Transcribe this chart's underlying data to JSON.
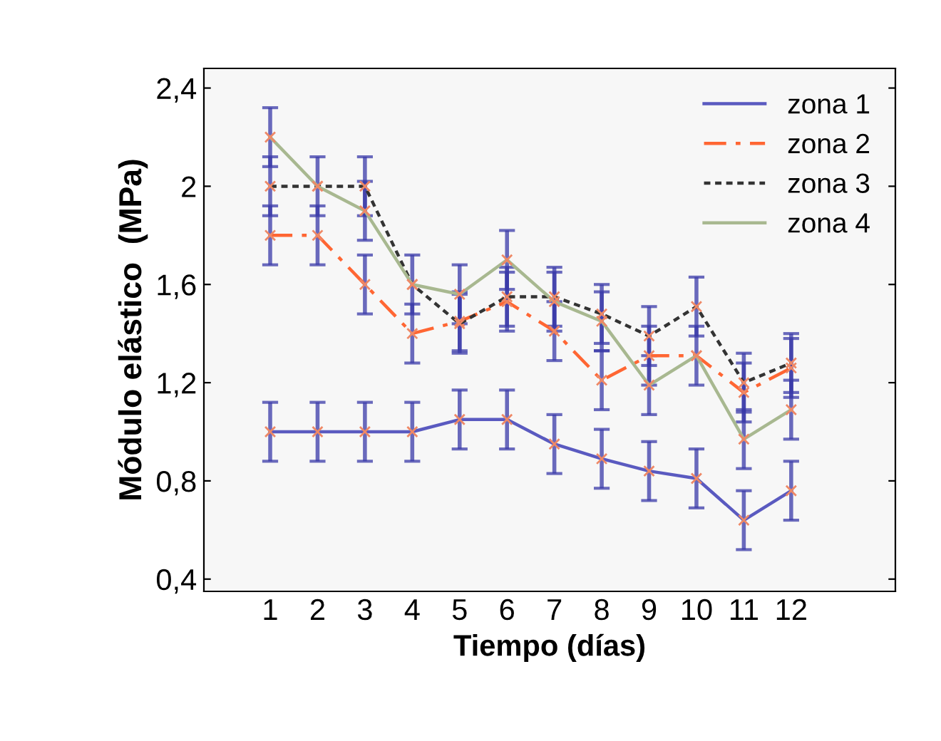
{
  "chart_data": {
    "type": "line",
    "xlabel": "Tiempo (días)",
    "ylabel": "Módulo elástico  (MPa)",
    "x": [
      1,
      2,
      3,
      4,
      5,
      6,
      7,
      8,
      9,
      10,
      11,
      12
    ],
    "xlim": [
      -0.4,
      14.2
    ],
    "xticks": [
      1,
      2,
      3,
      4,
      5,
      6,
      7,
      8,
      9,
      10,
      11,
      12
    ],
    "ylim": [
      0.35,
      2.48
    ],
    "yticks": [
      {
        "value": 0.4,
        "label": "0,4"
      },
      {
        "value": 0.8,
        "label": "0,8"
      },
      {
        "value": 1.2,
        "label": "1,2"
      },
      {
        "value": 1.6,
        "label": "1,6"
      },
      {
        "value": 2.0,
        "label": "2"
      },
      {
        "value": 2.4,
        "label": "2,4"
      }
    ],
    "marker": "cross",
    "legend": "top right",
    "grid": false,
    "series": [
      {
        "name": "zona 1",
        "color": "#5a5ac0",
        "line_style": "solid",
        "values": [
          1.0,
          1.0,
          1.0,
          1.0,
          1.05,
          1.05,
          0.95,
          0.89,
          0.84,
          0.81,
          0.64,
          0.76
        ],
        "errors": [
          0.12,
          0.12,
          0.12,
          0.12,
          0.12,
          0.12,
          0.12,
          0.12,
          0.12,
          0.12,
          0.12,
          0.12
        ]
      },
      {
        "name": "zona 2",
        "color": "#ff6633",
        "line_style": "dashed",
        "values": [
          1.8,
          1.8,
          1.6,
          1.4,
          1.45,
          1.53,
          1.41,
          1.21,
          1.31,
          1.31,
          1.16,
          1.26
        ],
        "errors": [
          0.12,
          0.12,
          0.12,
          0.12,
          0.12,
          0.12,
          0.12,
          0.12,
          0.12,
          0.12,
          0.12,
          0.12
        ]
      },
      {
        "name": "zona 3",
        "color": "#333333",
        "line_style": "dotted",
        "values": [
          2.0,
          2.0,
          2.0,
          1.6,
          1.44,
          1.55,
          1.55,
          1.48,
          1.39,
          1.51,
          1.2,
          1.28
        ],
        "errors": [
          0.12,
          null,
          0.12,
          0.12,
          0.12,
          0.12,
          0.12,
          0.12,
          0.12,
          0.12,
          0.12,
          0.12
        ]
      },
      {
        "name": "zona 4",
        "color": "#a8b890",
        "line_style": "solid",
        "values": [
          2.2,
          2.0,
          1.9,
          1.6,
          1.56,
          1.7,
          1.53,
          1.45,
          1.19,
          1.31,
          0.97,
          1.09
        ],
        "errors": [
          0.12,
          0.12,
          0.12,
          null,
          0.12,
          0.12,
          0.12,
          0.12,
          0.12,
          null,
          0.12,
          0.12
        ]
      }
    ]
  }
}
